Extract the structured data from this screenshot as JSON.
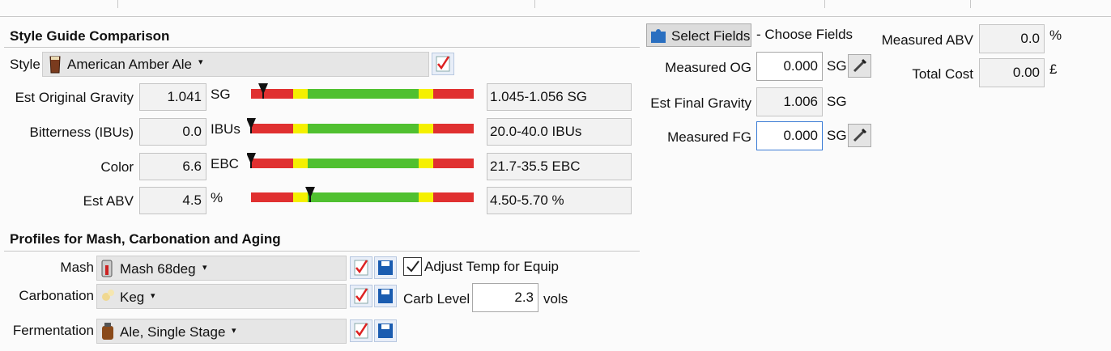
{
  "style_guide": {
    "title": "Style Guide Comparison",
    "style_label": "Style",
    "style_value": "American Amber Ale",
    "rows": [
      {
        "label": "Est Original Gravity",
        "value": "1.041",
        "unit": "SG",
        "range": "1.045-1.056 SG"
      },
      {
        "label": "Bitterness (IBUs)",
        "value": "0.0",
        "unit": "IBUs",
        "range": "20.0-40.0 IBUs"
      },
      {
        "label": "Color",
        "value": "6.6",
        "unit": "EBC",
        "range": "21.7-35.5 EBC"
      },
      {
        "label": "Est ABV",
        "value": "4.5",
        "unit": "%",
        "range": "4.50-5.70 %"
      }
    ]
  },
  "profiles": {
    "title": "Profiles for Mash, Carbonation and Aging",
    "mash": {
      "label": "Mash",
      "value": "Mash 68deg",
      "adjust_temp": "Adjust Temp for Equip"
    },
    "carbonation": {
      "label": "Carbonation",
      "value": "Keg",
      "carb_level_label": "Carb Level",
      "carb_level": "2.3",
      "carb_unit": "vols"
    },
    "fermentation": {
      "label": "Fermentation",
      "value": "Ale, Single Stage"
    }
  },
  "measurements": {
    "select_fields": "Select Fields",
    "choose_fields": "- Choose Fields",
    "measured_og": {
      "label": "Measured OG",
      "value": "0.000",
      "unit": "SG"
    },
    "est_fg": {
      "label": "Est Final Gravity",
      "value": "1.006",
      "unit": "SG"
    },
    "measured_fg": {
      "label": "Measured FG",
      "value": "0.000",
      "unit": "SG"
    },
    "measured_abv": {
      "label": "Measured ABV",
      "value": "0.0",
      "unit": "%"
    },
    "total_cost": {
      "label": "Total Cost",
      "value": "0.00",
      "unit": "£"
    }
  }
}
